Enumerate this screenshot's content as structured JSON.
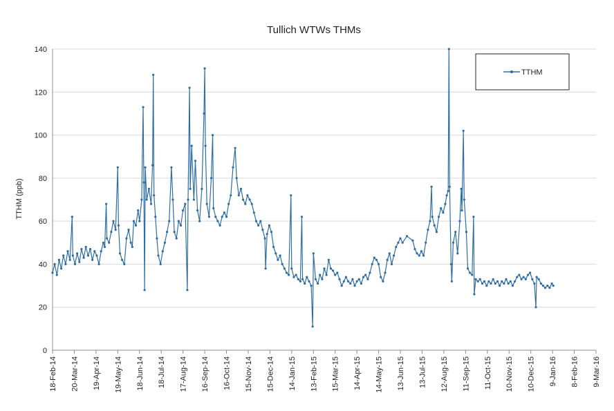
{
  "chart_data": {
    "type": "line",
    "title": "Tullich WTWs THMs",
    "ylabel": "TTHM (ppb)",
    "xlabel": "",
    "ylim": [
      0,
      140
    ],
    "y_ticks": [
      0,
      20,
      40,
      60,
      80,
      100,
      120,
      140
    ],
    "x_range": [
      "2014-02-18",
      "2016-03-09"
    ],
    "x_tick_labels": [
      "18-Feb-14",
      "20-Mar-14",
      "19-Apr-14",
      "19-May-14",
      "18-Jun-14",
      "18-Jul-14",
      "17-Aug-14",
      "16-Sep-14",
      "16-Oct-14",
      "15-Nov-14",
      "15-Dec-14",
      "14-Jan-15",
      "13-Feb-15",
      "15-Mar-15",
      "14-Apr-15",
      "14-May-15",
      "13-Jun-15",
      "13-Jul-15",
      "12-Aug-15",
      "11-Sep-15",
      "11-Oct-15",
      "10-Nov-15",
      "10-Dec-15",
      "9-Jan-16",
      "8-Feb-16",
      "9-Mar-16"
    ],
    "grid": "horizontal",
    "legend_position": "top-right",
    "series": [
      {
        "name": "TTHM",
        "color": "#2e6da4",
        "points": [
          [
            "2014-02-18",
            36
          ],
          [
            "2014-02-21",
            40
          ],
          [
            "2014-02-24",
            35
          ],
          [
            "2014-02-27",
            42
          ],
          [
            "2014-03-02",
            38
          ],
          [
            "2014-03-05",
            44
          ],
          [
            "2014-03-08",
            40
          ],
          [
            "2014-03-11",
            46
          ],
          [
            "2014-03-14",
            42
          ],
          [
            "2014-03-17",
            62
          ],
          [
            "2014-03-18",
            44
          ],
          [
            "2014-03-21",
            40
          ],
          [
            "2014-03-24",
            45
          ],
          [
            "2014-03-27",
            41
          ],
          [
            "2014-03-30",
            47
          ],
          [
            "2014-04-02",
            43
          ],
          [
            "2014-04-05",
            48
          ],
          [
            "2014-04-08",
            44
          ],
          [
            "2014-04-11",
            47
          ],
          [
            "2014-04-14",
            42
          ],
          [
            "2014-04-17",
            46
          ],
          [
            "2014-04-20",
            44
          ],
          [
            "2014-04-23",
            40
          ],
          [
            "2014-04-26",
            46
          ],
          [
            "2014-04-29",
            50
          ],
          [
            "2014-05-01",
            48
          ],
          [
            "2014-05-03",
            68
          ],
          [
            "2014-05-04",
            52
          ],
          [
            "2014-05-07",
            50
          ],
          [
            "2014-05-10",
            55
          ],
          [
            "2014-05-13",
            60
          ],
          [
            "2014-05-16",
            56
          ],
          [
            "2014-05-19",
            85
          ],
          [
            "2014-05-20",
            58
          ],
          [
            "2014-05-22",
            45
          ],
          [
            "2014-05-25",
            42
          ],
          [
            "2014-05-28",
            40
          ],
          [
            "2014-05-31",
            52
          ],
          [
            "2014-06-03",
            56
          ],
          [
            "2014-06-06",
            50
          ],
          [
            "2014-06-08",
            48
          ],
          [
            "2014-06-10",
            60
          ],
          [
            "2014-06-13",
            58
          ],
          [
            "2014-06-16",
            65
          ],
          [
            "2014-06-18",
            60
          ],
          [
            "2014-06-21",
            70
          ],
          [
            "2014-06-23",
            113
          ],
          [
            "2014-06-24",
            78
          ],
          [
            "2014-06-25",
            28
          ],
          [
            "2014-06-26",
            85
          ],
          [
            "2014-06-28",
            70
          ],
          [
            "2014-07-01",
            75
          ],
          [
            "2014-07-04",
            68
          ],
          [
            "2014-07-06",
            86
          ],
          [
            "2014-07-07",
            128
          ],
          [
            "2014-07-08",
            72
          ],
          [
            "2014-07-10",
            62
          ],
          [
            "2014-07-12",
            52
          ],
          [
            "2014-07-14",
            44
          ],
          [
            "2014-07-17",
            40
          ],
          [
            "2014-07-20",
            46
          ],
          [
            "2014-07-23",
            50
          ],
          [
            "2014-07-26",
            55
          ],
          [
            "2014-07-29",
            60
          ],
          [
            "2014-08-01",
            85
          ],
          [
            "2014-08-03",
            70
          ],
          [
            "2014-08-05",
            55
          ],
          [
            "2014-08-08",
            52
          ],
          [
            "2014-08-11",
            60
          ],
          [
            "2014-08-14",
            58
          ],
          [
            "2014-08-17",
            65
          ],
          [
            "2014-08-20",
            68
          ],
          [
            "2014-08-23",
            28
          ],
          [
            "2014-08-24",
            70
          ],
          [
            "2014-08-26",
            122
          ],
          [
            "2014-08-27",
            75
          ],
          [
            "2014-08-29",
            95
          ],
          [
            "2014-09-01",
            70
          ],
          [
            "2014-09-03",
            88
          ],
          [
            "2014-09-06",
            65
          ],
          [
            "2014-09-09",
            60
          ],
          [
            "2014-09-12",
            75
          ],
          [
            "2014-09-15",
            110
          ],
          [
            "2014-09-16",
            131
          ],
          [
            "2014-09-17",
            95
          ],
          [
            "2014-09-19",
            68
          ],
          [
            "2014-09-22",
            62
          ],
          [
            "2014-09-25",
            80
          ],
          [
            "2014-09-27",
            100
          ],
          [
            "2014-09-28",
            66
          ],
          [
            "2014-10-01",
            62
          ],
          [
            "2014-10-04",
            60
          ],
          [
            "2014-10-07",
            58
          ],
          [
            "2014-10-10",
            62
          ],
          [
            "2014-10-13",
            64
          ],
          [
            "2014-10-16",
            62
          ],
          [
            "2014-10-19",
            68
          ],
          [
            "2014-10-22",
            72
          ],
          [
            "2014-10-25",
            85
          ],
          [
            "2014-10-28",
            94
          ],
          [
            "2014-10-30",
            80
          ],
          [
            "2014-11-02",
            72
          ],
          [
            "2014-11-05",
            75
          ],
          [
            "2014-11-08",
            70
          ],
          [
            "2014-11-11",
            68
          ],
          [
            "2014-11-14",
            72
          ],
          [
            "2014-11-17",
            70
          ],
          [
            "2014-11-20",
            68
          ],
          [
            "2014-11-23",
            64
          ],
          [
            "2014-11-26",
            60
          ],
          [
            "2014-11-29",
            58
          ],
          [
            "2014-12-02",
            60
          ],
          [
            "2014-12-05",
            56
          ],
          [
            "2014-12-08",
            52
          ],
          [
            "2014-12-09",
            38
          ],
          [
            "2014-12-11",
            54
          ],
          [
            "2014-12-14",
            58
          ],
          [
            "2014-12-17",
            55
          ],
          [
            "2014-12-20",
            48
          ],
          [
            "2014-12-23",
            45
          ],
          [
            "2014-12-26",
            42
          ],
          [
            "2014-12-29",
            44
          ],
          [
            "2015-01-01",
            40
          ],
          [
            "2015-01-04",
            38
          ],
          [
            "2015-01-07",
            36
          ],
          [
            "2015-01-10",
            35
          ],
          [
            "2015-01-13",
            72
          ],
          [
            "2015-01-14",
            38
          ],
          [
            "2015-01-17",
            34
          ],
          [
            "2015-01-20",
            35
          ],
          [
            "2015-01-23",
            33
          ],
          [
            "2015-01-26",
            32
          ],
          [
            "2015-01-28",
            62
          ],
          [
            "2015-01-29",
            33
          ],
          [
            "2015-02-01",
            31
          ],
          [
            "2015-02-04",
            34
          ],
          [
            "2015-02-07",
            32
          ],
          [
            "2015-02-10",
            30
          ],
          [
            "2015-02-12",
            11
          ],
          [
            "2015-02-13",
            45
          ],
          [
            "2015-02-16",
            33
          ],
          [
            "2015-02-19",
            31
          ],
          [
            "2015-02-22",
            35
          ],
          [
            "2015-02-25",
            33
          ],
          [
            "2015-02-28",
            38
          ],
          [
            "2015-03-03",
            35
          ],
          [
            "2015-03-06",
            42
          ],
          [
            "2015-03-09",
            38
          ],
          [
            "2015-03-12",
            37
          ],
          [
            "2015-03-15",
            35
          ],
          [
            "2015-03-18",
            36
          ],
          [
            "2015-03-21",
            33
          ],
          [
            "2015-03-24",
            30
          ],
          [
            "2015-03-27",
            32
          ],
          [
            "2015-03-30",
            34
          ],
          [
            "2015-04-02",
            32
          ],
          [
            "2015-04-05",
            31
          ],
          [
            "2015-04-08",
            33
          ],
          [
            "2015-04-11",
            30
          ],
          [
            "2015-04-14",
            32
          ],
          [
            "2015-04-17",
            33
          ],
          [
            "2015-04-20",
            31
          ],
          [
            "2015-04-23",
            34
          ],
          [
            "2015-04-26",
            35
          ],
          [
            "2015-04-29",
            33
          ],
          [
            "2015-05-02",
            36
          ],
          [
            "2015-05-05",
            40
          ],
          [
            "2015-05-08",
            43
          ],
          [
            "2015-05-11",
            42
          ],
          [
            "2015-05-14",
            40
          ],
          [
            "2015-05-17",
            34
          ],
          [
            "2015-05-20",
            32
          ],
          [
            "2015-05-23",
            36
          ],
          [
            "2015-05-26",
            42
          ],
          [
            "2015-05-29",
            45
          ],
          [
            "2015-06-01",
            40
          ],
          [
            "2015-06-04",
            44
          ],
          [
            "2015-06-07",
            48
          ],
          [
            "2015-06-10",
            50
          ],
          [
            "2015-06-13",
            52
          ],
          [
            "2015-06-16",
            50
          ],
          [
            "2015-06-22",
            53
          ],
          [
            "2015-06-30",
            51
          ],
          [
            "2015-07-03",
            47
          ],
          [
            "2015-07-06",
            45
          ],
          [
            "2015-07-09",
            44
          ],
          [
            "2015-07-12",
            46
          ],
          [
            "2015-07-15",
            44
          ],
          [
            "2015-07-18",
            50
          ],
          [
            "2015-07-21",
            56
          ],
          [
            "2015-07-24",
            60
          ],
          [
            "2015-07-26",
            76
          ],
          [
            "2015-07-27",
            62
          ],
          [
            "2015-07-30",
            58
          ],
          [
            "2015-08-02",
            55
          ],
          [
            "2015-08-05",
            62
          ],
          [
            "2015-08-08",
            66
          ],
          [
            "2015-08-11",
            64
          ],
          [
            "2015-08-14",
            68
          ],
          [
            "2015-08-16",
            72
          ],
          [
            "2015-08-18",
            74
          ],
          [
            "2015-08-19",
            140
          ],
          [
            "2015-08-20",
            76
          ],
          [
            "2015-08-22",
            40
          ],
          [
            "2015-08-23",
            32
          ],
          [
            "2015-08-25",
            50
          ],
          [
            "2015-08-28",
            55
          ],
          [
            "2015-08-31",
            45
          ],
          [
            "2015-09-03",
            60
          ],
          [
            "2015-09-05",
            75
          ],
          [
            "2015-09-06",
            65
          ],
          [
            "2015-09-08",
            102
          ],
          [
            "2015-09-09",
            70
          ],
          [
            "2015-09-12",
            55
          ],
          [
            "2015-09-14",
            38
          ],
          [
            "2015-09-17",
            36
          ],
          [
            "2015-09-20",
            35
          ],
          [
            "2015-09-22",
            62
          ],
          [
            "2015-09-23",
            26
          ],
          [
            "2015-09-25",
            33
          ],
          [
            "2015-09-28",
            32
          ],
          [
            "2015-10-01",
            33
          ],
          [
            "2015-10-04",
            31
          ],
          [
            "2015-10-07",
            32
          ],
          [
            "2015-10-10",
            30
          ],
          [
            "2015-10-13",
            32
          ],
          [
            "2015-10-16",
            31
          ],
          [
            "2015-10-19",
            33
          ],
          [
            "2015-10-22",
            31
          ],
          [
            "2015-10-25",
            32
          ],
          [
            "2015-10-28",
            30
          ],
          [
            "2015-10-31",
            32
          ],
          [
            "2015-11-03",
            31
          ],
          [
            "2015-11-06",
            33
          ],
          [
            "2015-11-09",
            31
          ],
          [
            "2015-11-12",
            32
          ],
          [
            "2015-11-15",
            30
          ],
          [
            "2015-11-18",
            32
          ],
          [
            "2015-11-21",
            34
          ],
          [
            "2015-11-24",
            35
          ],
          [
            "2015-11-27",
            33
          ],
          [
            "2015-11-30",
            34
          ],
          [
            "2015-12-03",
            33
          ],
          [
            "2015-12-06",
            35
          ],
          [
            "2015-12-09",
            36
          ],
          [
            "2015-12-12",
            33
          ],
          [
            "2015-12-15",
            31
          ],
          [
            "2015-12-17",
            20
          ],
          [
            "2015-12-18",
            34
          ],
          [
            "2015-12-21",
            33
          ],
          [
            "2015-12-24",
            31
          ],
          [
            "2015-12-27",
            30
          ],
          [
            "2015-12-30",
            29
          ],
          [
            "2016-01-02",
            30
          ],
          [
            "2016-01-05",
            29
          ],
          [
            "2016-01-08",
            31
          ],
          [
            "2016-01-10",
            30
          ]
        ]
      }
    ]
  }
}
